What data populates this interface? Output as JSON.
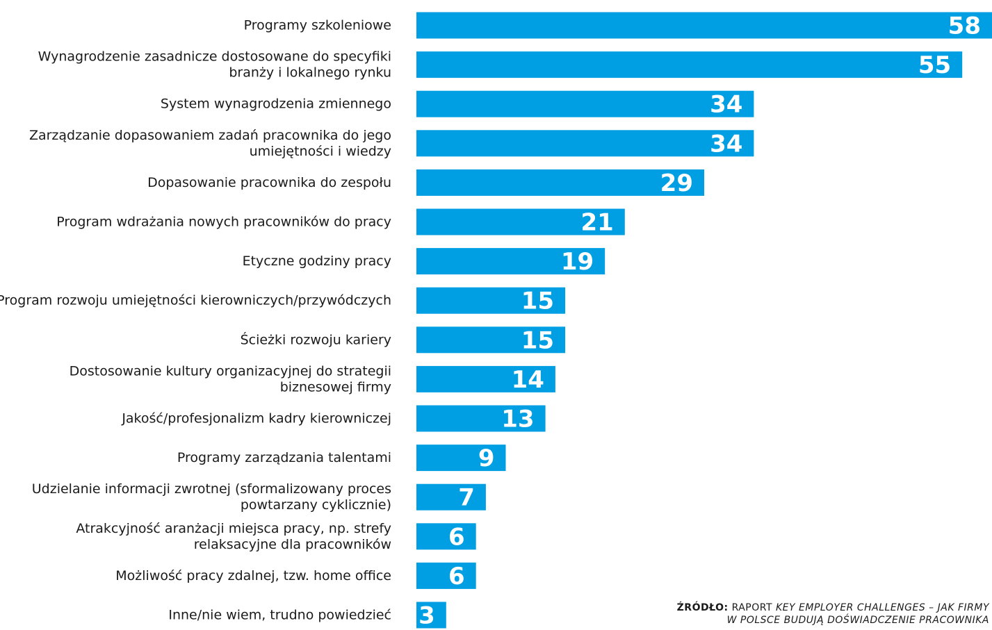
{
  "chart_data": {
    "type": "bar",
    "orientation": "horizontal",
    "categories": [
      [
        "Programy szkoleniowe"
      ],
      [
        "Wynagrodzenie zasadnicze dostosowane do specyfiki",
        "branży i lokalnego rynku"
      ],
      [
        "System wynagrodzenia zmiennego"
      ],
      [
        "Zarządzanie dopasowaniem zadań pracownika do jego",
        "umiejętności i wiedzy"
      ],
      [
        "Dopasowanie pracownika do zespołu"
      ],
      [
        "Program wdrażania nowych pracowników do pracy"
      ],
      [
        "Etyczne godziny pracy"
      ],
      [
        "Program rozwoju umiejętności kierowniczych/przywódczych"
      ],
      [
        "Ścieżki rozwoju kariery"
      ],
      [
        "Dostosowanie kultury organizacyjnej do strategii",
        "biznesowej firmy"
      ],
      [
        "Jakość/profesjonalizm kadry kierowniczej"
      ],
      [
        "Programy zarządzania talentami"
      ],
      [
        "Udzielanie informacji zwrotnej (sformalizowany proces",
        "powtarzany cyklicznie)"
      ],
      [
        "Atrakcyjność aranżacji miejsca pracy, np. strefy",
        "relaksacyjne dla pracowników"
      ],
      [
        "Możliwość pracy zdalnej, tzw. home office"
      ],
      [
        "Inne/nie wiem, trudno powiedzieć"
      ]
    ],
    "values": [
      58,
      55,
      34,
      34,
      29,
      21,
      19,
      15,
      15,
      14,
      13,
      9,
      7,
      6,
      6,
      3
    ],
    "bar_color": "#009fe3",
    "value_label_color": "#ffffff",
    "xlim": [
      0,
      58
    ],
    "grid": false,
    "legend": false
  },
  "source": {
    "label": "ŹRÓDŁO:",
    "publisher": "RAPORT",
    "title_line1": "KEY EMPLOYER CHALLENGES – JAK FIRMY",
    "title_line2": "W POLSCE BUDUJĄ DOŚWIADCZENIE PRACOWNIKA"
  }
}
